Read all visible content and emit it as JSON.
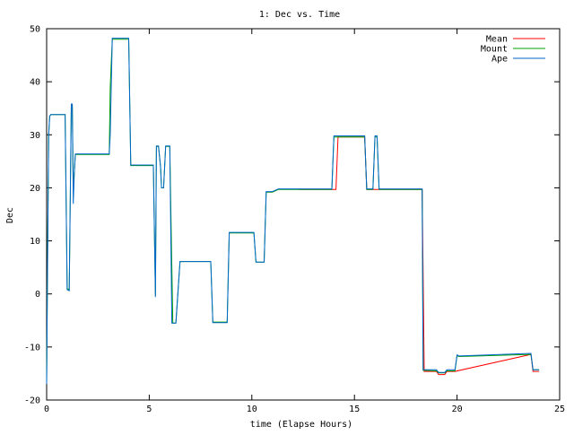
{
  "chart_data": {
    "type": "line",
    "title": "1: Dec vs. Time",
    "xlabel": "time (Elapse Hours)",
    "ylabel": "Dec",
    "xlim": [
      0,
      25
    ],
    "ylim": [
      -20,
      50
    ],
    "xticks": [
      0,
      5,
      10,
      15,
      20,
      25
    ],
    "yticks": [
      -20,
      -10,
      0,
      10,
      20,
      30,
      40,
      50
    ],
    "grid": false,
    "legend_position": "top-right",
    "series": [
      {
        "name": "Mean",
        "color": "#ff0000",
        "x": [
          12.3,
          14.1,
          14.2,
          15.5,
          15.6,
          18.3,
          18.4,
          19.0,
          19.1,
          19.4,
          19.5,
          19.9,
          23.6,
          23.7,
          24.0
        ],
        "y": [
          19.7,
          19.7,
          29.6,
          29.6,
          19.7,
          19.7,
          -14.6,
          -14.6,
          -15.2,
          -15.2,
          -14.6,
          -14.6,
          -11.4,
          -14.6,
          -14.6
        ]
      },
      {
        "name": "Mount",
        "color": "#00a000",
        "x": [
          0.0,
          0.05,
          0.1,
          0.15,
          0.2,
          0.25,
          0.3,
          0.9,
          1.0,
          1.1,
          1.2,
          1.25,
          1.3,
          1.35,
          1.4,
          3.05,
          3.1,
          3.2,
          3.25,
          3.3,
          4.0,
          4.1,
          5.2,
          5.3,
          5.35,
          5.45,
          5.55,
          5.6,
          5.7,
          5.8,
          6.0,
          6.1,
          6.15,
          6.2,
          6.3,
          6.5,
          6.6,
          8.0,
          8.1,
          8.3,
          8.8,
          8.9,
          9.0,
          10.1,
          10.2,
          10.6,
          10.7,
          11.0,
          11.3,
          11.5,
          12.3,
          13.9,
          14.0,
          14.1,
          14.2,
          15.5,
          15.6,
          15.9,
          16.0,
          16.1,
          16.2,
          18.2,
          18.3,
          18.35,
          19.0,
          19.1,
          19.4,
          19.5,
          19.9,
          20.0,
          20.1,
          23.6,
          23.7,
          24.0
        ],
        "y": [
          -16.5,
          8.5,
          30,
          33.5,
          33.8,
          33.8,
          33.8,
          33.8,
          1.0,
          0.8,
          35.5,
          35.5,
          20,
          23,
          26.3,
          26.3,
          39,
          48,
          48,
          48,
          48,
          24.2,
          24.2,
          -0.3,
          27.8,
          27.8,
          24,
          20,
          20,
          27.8,
          27.8,
          5,
          -5.5,
          -5.5,
          -5.5,
          6.1,
          6.1,
          6.1,
          -5.3,
          -5.3,
          -5.3,
          11.5,
          11.5,
          11.5,
          6.0,
          6.0,
          19.2,
          19.2,
          19.7,
          19.7,
          19.7,
          19.7,
          29.6,
          29.6,
          29.6,
          29.6,
          19.7,
          19.7,
          29.6,
          29.6,
          19.7,
          19.7,
          19.7,
          -14.4,
          -14.5,
          -14.9,
          -14.9,
          -14.5,
          -14.5,
          -11.6,
          -11.8,
          -11.4,
          -14.3,
          -14.3
        ]
      },
      {
        "name": "Ape",
        "color": "#0066cc",
        "x": [
          0.0,
          0.05,
          0.1,
          0.15,
          0.2,
          0.25,
          0.3,
          0.9,
          1.0,
          1.1,
          1.2,
          1.25,
          1.3,
          1.35,
          1.4,
          3.05,
          3.1,
          3.2,
          3.25,
          3.3,
          4.0,
          4.1,
          5.2,
          5.3,
          5.35,
          5.45,
          5.55,
          5.6,
          5.7,
          5.8,
          6.0,
          6.1,
          6.15,
          6.2,
          6.3,
          6.5,
          6.6,
          8.0,
          8.1,
          8.3,
          8.8,
          8.9,
          9.0,
          10.1,
          10.2,
          10.6,
          10.7,
          11.0,
          11.3,
          11.5,
          12.3,
          13.9,
          14.0,
          14.1,
          14.2,
          15.5,
          15.6,
          15.9,
          16.0,
          16.1,
          16.2,
          18.2,
          18.3,
          18.35,
          19.0,
          19.1,
          19.4,
          19.5,
          19.9,
          20.0,
          20.1,
          23.6,
          23.7,
          24.0
        ],
        "y": [
          -17,
          7,
          30,
          33.5,
          33.8,
          33.8,
          33.8,
          33.8,
          0.8,
          0.6,
          35.8,
          35.8,
          17,
          23,
          26.4,
          26.4,
          30,
          48.2,
          48.2,
          48.2,
          48.2,
          24.3,
          24.3,
          -0.6,
          27.9,
          27.9,
          24,
          20,
          20,
          27.9,
          27.9,
          -5.5,
          -5.5,
          -5.5,
          -5.5,
          6.1,
          6.1,
          6.1,
          -5.4,
          -5.4,
          -5.4,
          11.6,
          11.6,
          11.6,
          6.0,
          6.0,
          19.3,
          19.3,
          19.8,
          19.8,
          19.8,
          19.8,
          29.8,
          29.8,
          29.8,
          29.8,
          19.8,
          19.8,
          29.8,
          29.8,
          19.8,
          19.8,
          19.8,
          -14.3,
          -14.3,
          -14.8,
          -14.8,
          -14.3,
          -14.3,
          -11.5,
          -11.7,
          -11.2,
          -14.3,
          -14.3
        ]
      }
    ]
  }
}
